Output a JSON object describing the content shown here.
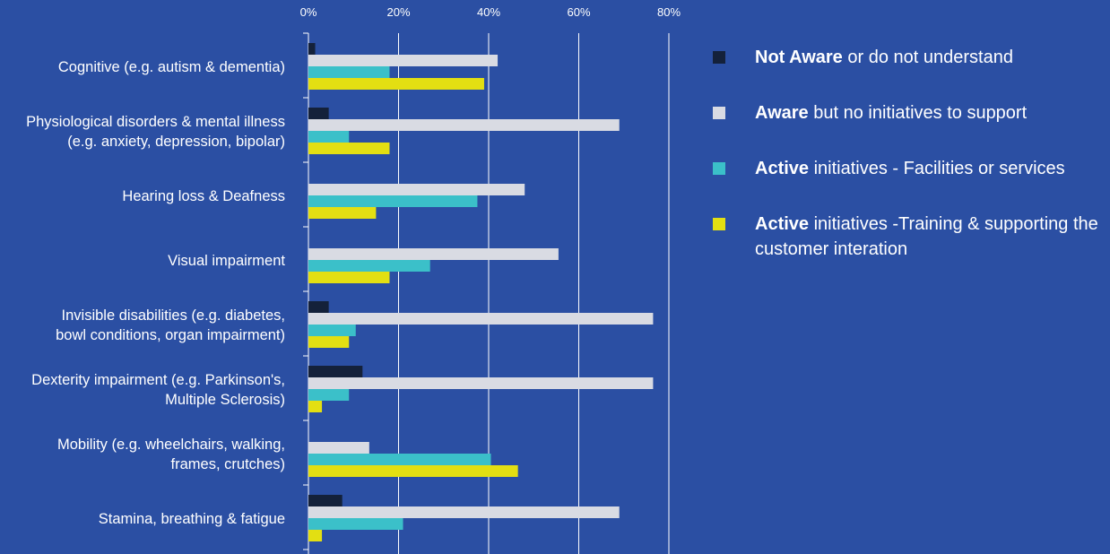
{
  "colors": {
    "background": "#2b4fa3",
    "not_aware": "#14213a",
    "aware": "#d9dbe3",
    "active_facilities": "#3bc0c9",
    "active_training": "#e3df12",
    "grid": "#ffffff"
  },
  "chart_data": {
    "type": "bar",
    "orientation": "horizontal",
    "title": "",
    "xlabel": "",
    "ylabel": "",
    "xlim": [
      0,
      80
    ],
    "x_ticks": [
      "0%",
      "20%",
      "40%",
      "60%",
      "80%"
    ],
    "grid": true,
    "legend_position": "right",
    "categories": [
      [
        "Cognitive (e.g. autism & dementia)"
      ],
      [
        "Physiological disorders & mental illness",
        "(e.g. anxiety, depression, bipolar)"
      ],
      [
        "Hearing loss & Deafness"
      ],
      [
        "Visual impairment"
      ],
      [
        "Invisible disabilities (e.g. diabetes,",
        "bowl conditions, organ impairment)"
      ],
      [
        "Dexterity impairment (e.g. Parkinson's,",
        "Multiple Sclerosis)"
      ],
      [
        "Mobility (e.g. wheelchairs, walking,",
        "frames, crutches)"
      ],
      [
        "Stamina, breathing & fatigue"
      ]
    ],
    "series": [
      {
        "key": "not_aware",
        "values": [
          1.5,
          4.5,
          0,
          0,
          4.5,
          12,
          0,
          7.5
        ]
      },
      {
        "key": "aware",
        "values": [
          42,
          69,
          48,
          55.5,
          76.5,
          76.5,
          13.5,
          69
        ]
      },
      {
        "key": "active_facilities",
        "values": [
          18,
          9,
          37.5,
          27,
          10.5,
          9,
          40.5,
          21
        ]
      },
      {
        "key": "active_training",
        "values": [
          39,
          18,
          15,
          18,
          9,
          3,
          46.5,
          3
        ]
      }
    ]
  },
  "legend": {
    "items": [
      {
        "key": "not_aware",
        "bold": "Not Aware",
        "rest": " or do not understand"
      },
      {
        "key": "aware",
        "bold": "Aware",
        "rest": " but no initiatives to support"
      },
      {
        "key": "active_facilities",
        "bold": "Active",
        "rest": " initiatives - Facilities or services"
      },
      {
        "key": "active_training",
        "bold": "Active",
        "rest": " initiatives -Training & supporting the customer interation"
      }
    ]
  }
}
